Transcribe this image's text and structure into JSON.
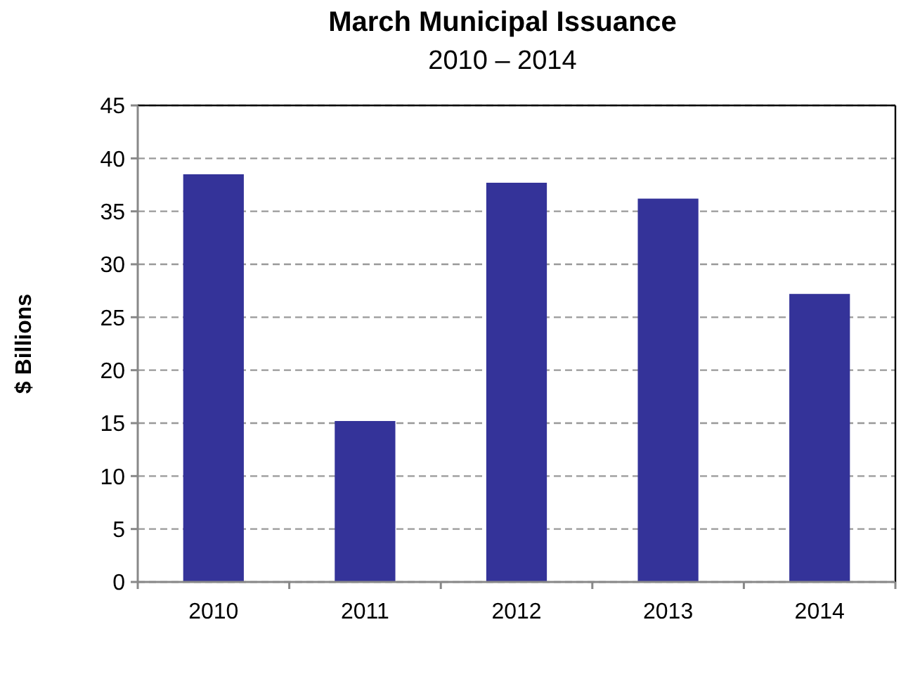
{
  "chart_data": {
    "type": "bar",
    "title": "March Municipal Issuance",
    "subtitle": "2010 – 2014",
    "ylabel": "$ Billions",
    "categories": [
      "2010",
      "2011",
      "2012",
      "2013",
      "2014"
    ],
    "values": [
      38.5,
      15.2,
      37.7,
      36.2,
      27.2
    ],
    "color": "#343399",
    "ylim": [
      0,
      45
    ],
    "yticks": [
      0,
      5,
      10,
      15,
      20,
      25,
      30,
      35,
      40,
      45
    ],
    "grid": "y"
  }
}
